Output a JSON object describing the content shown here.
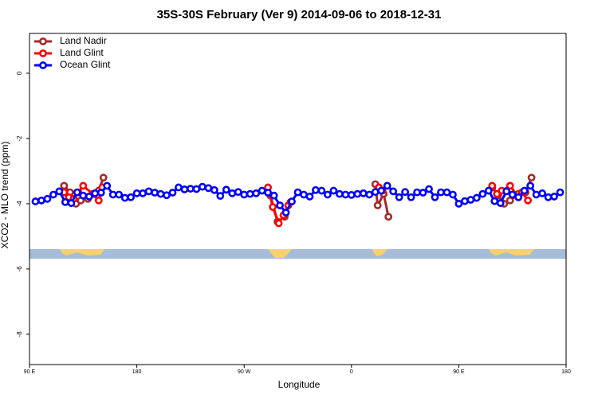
{
  "chart_data": {
    "type": "line",
    "title": "35S-30S February (Ver 9)   2014-09-06 to 2018-12-31",
    "x_label": "Longitude",
    "y_label": "XCO2 - MLO trend (ppm)",
    "xlim": [
      90,
      540
    ],
    "ylim": [
      -8.93,
      1.22
    ],
    "xticks": [
      {
        "value": 90,
        "label": "90 E"
      },
      180,
      {
        "value": 270,
        "label": "90 W"
      },
      {
        "value": 360,
        "label": "0"
      },
      {
        "value": 450,
        "label": "90 E"
      },
      {
        "value": 540,
        "label": "180"
      }
    ],
    "yticks": [
      0,
      -2,
      -4,
      -6,
      -8
    ],
    "legend": "top-left",
    "series": [
      {
        "name": "Land Nadir",
        "color": "#a52a2a",
        "x": [
          119,
          124,
          129,
          133,
          139,
          144,
          148,
          152,
          200,
          292,
          298,
          304,
          350,
          380,
          382,
          387,
          391,
          440,
          478,
          483,
          488,
          493,
          500,
          506,
          511
        ],
        "values": [
          -3.45,
          -3.65,
          -4.0,
          -3.9,
          -3.85,
          -3.7,
          -3.6,
          -3.2,
          null,
          -3.75,
          -4.55,
          -4.4,
          null,
          -3.4,
          -4.05,
          -3.7,
          -4.4,
          null,
          -3.5,
          -3.75,
          -4.0,
          -3.9,
          -3.7,
          -3.65,
          -3.2
        ]
      },
      {
        "name": "Land Glint",
        "color": "#ff0000",
        "x": [
          119,
          123,
          127,
          131,
          135,
          143,
          148,
          151,
          200,
          290,
          294,
          299,
          303,
          307,
          309,
          350,
          383,
          386,
          440,
          478,
          482,
          486,
          493,
          500,
          503,
          508
        ],
        "values": [
          -3.65,
          -3.8,
          -3.85,
          -3.65,
          -3.45,
          -3.7,
          -3.9,
          -3.5,
          null,
          -3.5,
          -4.1,
          -4.6,
          -4.35,
          -4.05,
          -3.95,
          null,
          -3.5,
          -3.6,
          null,
          -3.45,
          -3.7,
          -3.6,
          -3.45,
          -3.8,
          -3.65,
          -3.9
        ]
      },
      {
        "name": "Ocean Glint",
        "color": "#0000ff",
        "x": [
          95,
          100,
          105,
          110,
          115,
          120,
          125,
          130,
          135,
          140,
          145,
          150,
          155,
          160,
          165,
          170,
          175,
          180,
          185,
          190,
          195,
          200,
          205,
          210,
          215,
          220,
          225,
          230,
          235,
          240,
          245,
          250,
          255,
          260,
          265,
          270,
          275,
          280,
          285,
          290,
          295,
          300,
          305,
          310,
          315,
          320,
          325,
          330,
          335,
          340,
          345,
          350,
          355,
          360,
          365,
          370,
          375,
          380,
          385,
          390,
          395,
          400,
          405,
          410,
          415,
          420,
          425,
          430,
          435,
          440,
          445,
          450,
          455,
          460,
          465,
          470,
          475,
          480,
          485,
          490,
          495,
          500,
          505,
          510,
          515,
          520,
          525,
          530,
          535
        ],
        "values": [
          -3.93,
          -3.9,
          -3.85,
          -3.72,
          -3.62,
          -3.95,
          -3.98,
          -3.65,
          -3.75,
          -3.78,
          -3.68,
          -3.66,
          -3.45,
          -3.72,
          -3.72,
          -3.82,
          -3.8,
          -3.68,
          -3.68,
          -3.62,
          -3.66,
          -3.7,
          -3.74,
          -3.66,
          -3.5,
          -3.56,
          -3.54,
          -3.55,
          -3.48,
          -3.52,
          -3.58,
          -3.76,
          -3.57,
          -3.68,
          -3.64,
          -3.72,
          -3.7,
          -3.68,
          -3.6,
          -3.66,
          -3.75,
          -4.05,
          -4.27,
          -3.93,
          -3.65,
          -3.72,
          -3.78,
          -3.58,
          -3.6,
          -3.72,
          -3.6,
          -3.7,
          -3.72,
          -3.73,
          -3.7,
          -3.68,
          -3.72,
          -3.64,
          -3.6,
          -3.45,
          -3.62,
          -3.8,
          -3.64,
          -3.8,
          -3.65,
          -3.66,
          -3.55,
          -3.8,
          -3.65,
          -3.65,
          -3.72,
          -4.0,
          -3.92,
          -3.88,
          -3.82,
          -3.7,
          -3.6,
          -3.92,
          -3.98,
          -3.62,
          -3.72,
          -3.8,
          -3.6,
          -3.45,
          -3.72,
          -3.68,
          -3.8,
          -3.78,
          -3.65
        ]
      }
    ]
  }
}
